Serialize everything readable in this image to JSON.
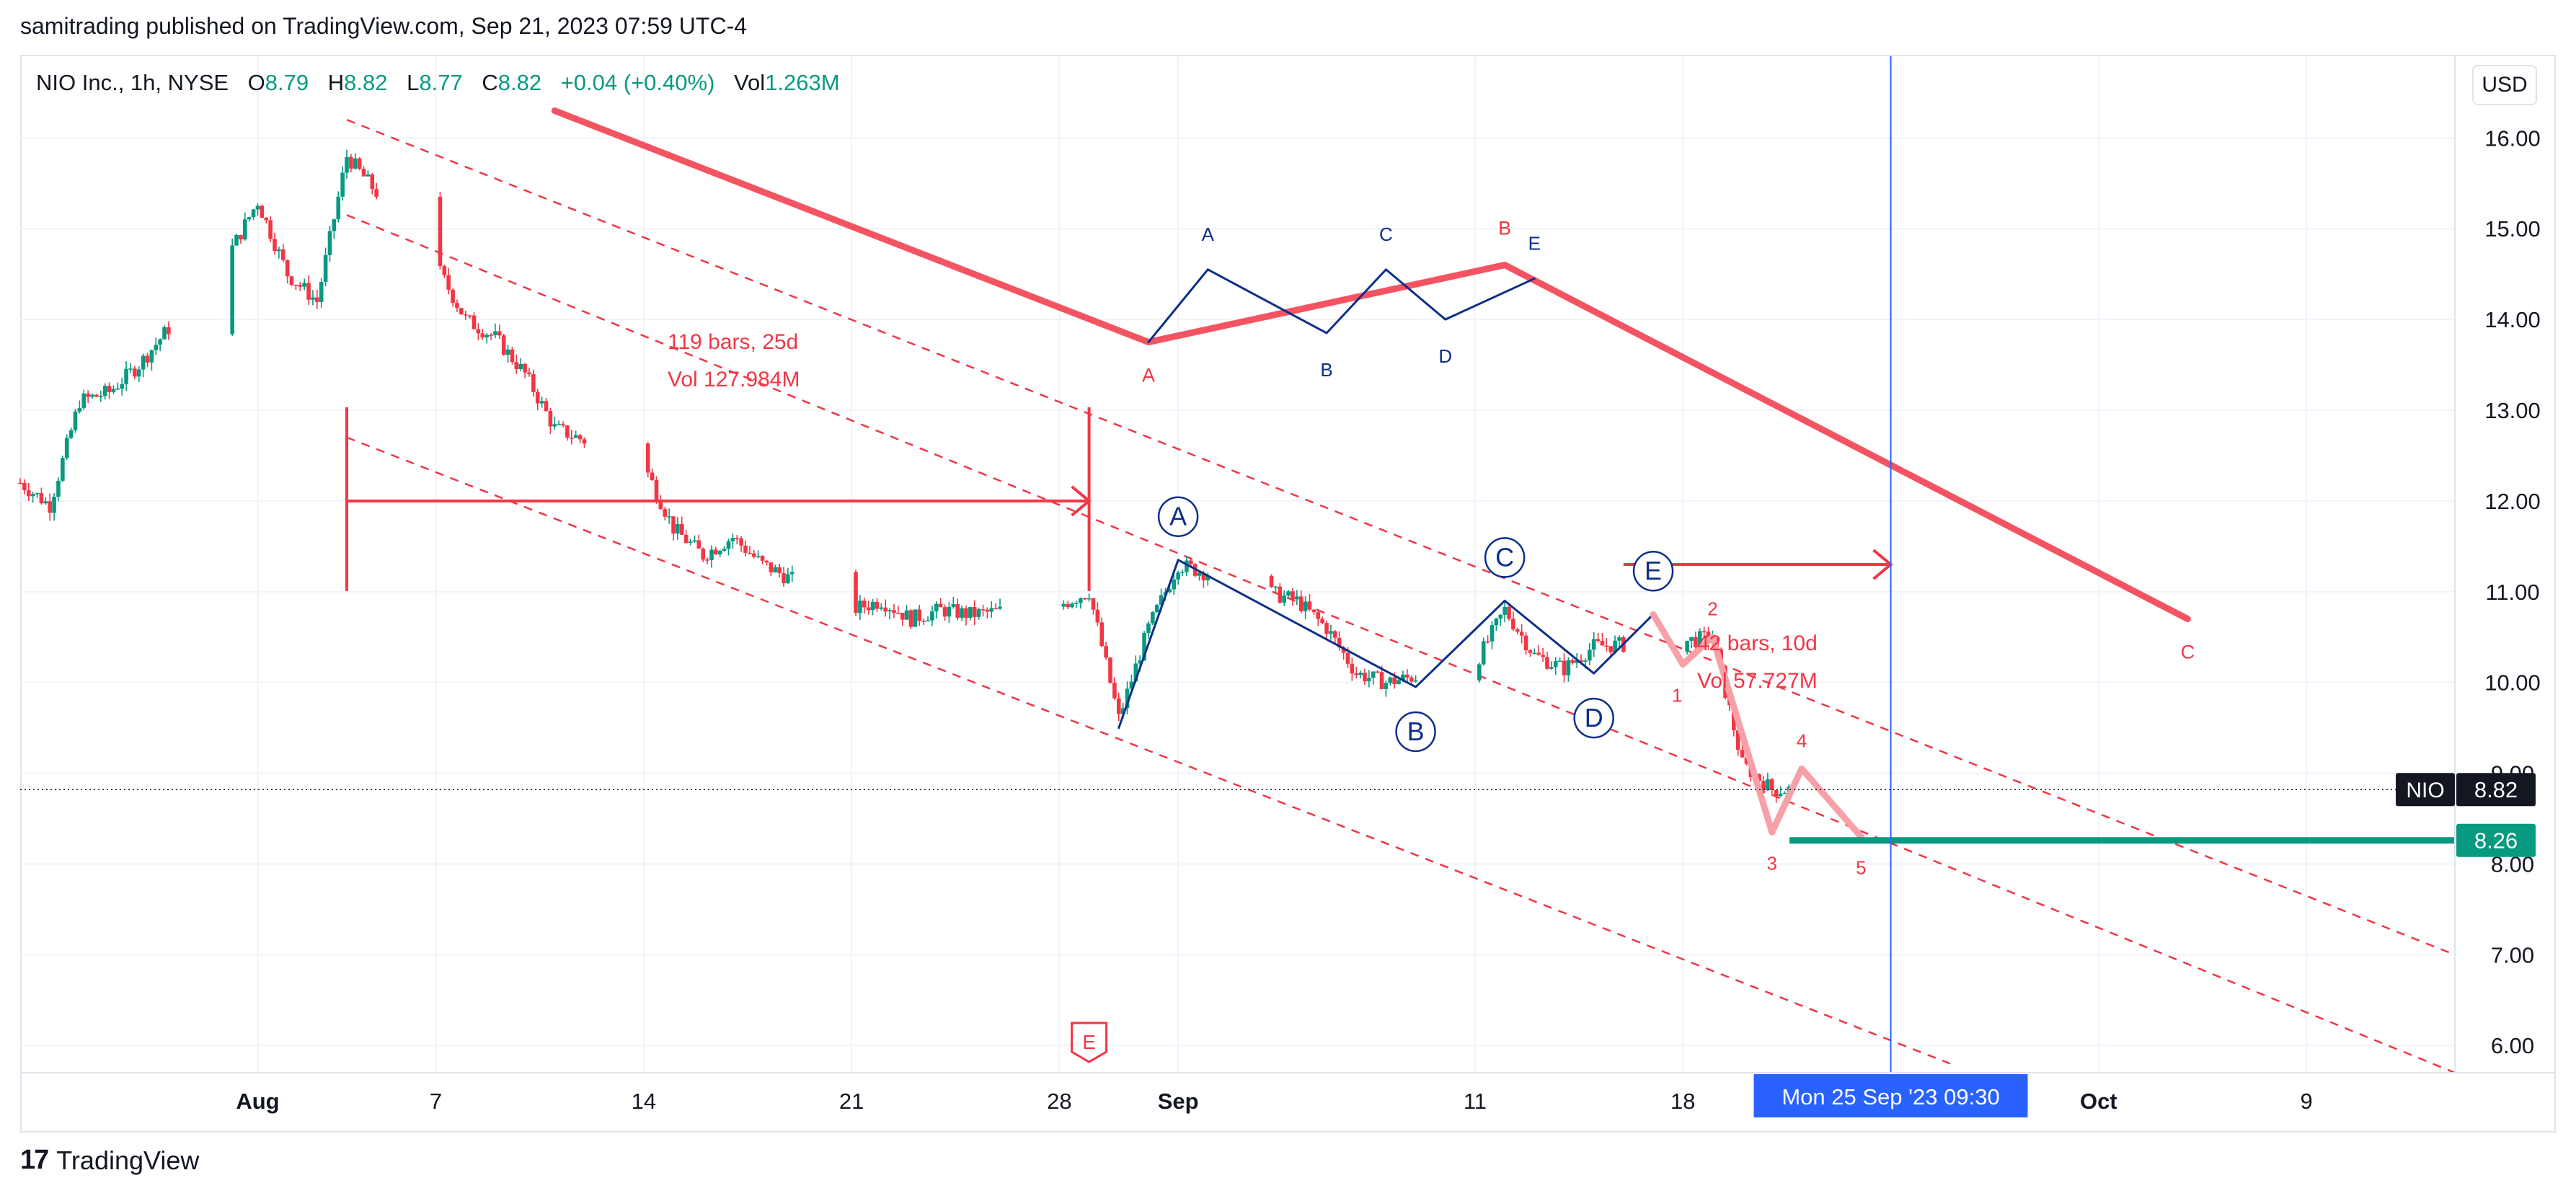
{
  "publisher_line": "samitrading published on TradingView.com, Sep 21, 2023 07:59 UTC-4",
  "legend": {
    "symbol_line": "NIO Inc., 1h, NYSE",
    "o_label": "O",
    "o_value": "8.79",
    "h_label": "H",
    "h_value": "8.82",
    "l_label": "L",
    "l_value": "8.77",
    "c_label": "C",
    "c_value": "8.82",
    "change": "+0.04 (+0.40%)",
    "vol_label": "Vol",
    "vol_value": "1.263M"
  },
  "currency": "USD",
  "footer": {
    "logo": "17",
    "brand": "TradingView"
  },
  "colors": {
    "up": "#089981",
    "down": "#f23645",
    "drawing_red": "#f23645",
    "wave_blue": "#0d2f8a",
    "pink": "#f7a0a8",
    "support_green": "#089981",
    "crosshair": "#2962ff"
  },
  "chart_data": {
    "type": "candlestick",
    "symbol": "NIO",
    "interval": "1h",
    "y_range": [
      5.7,
      16.9
    ],
    "y_ticks": [
      "16.00",
      "15.00",
      "14.00",
      "13.00",
      "12.00",
      "11.00",
      "10.00",
      "9.00",
      "8.00",
      "7.00",
      "6.00"
    ],
    "x_range": [
      "2023-07-24",
      "2023-10-14"
    ],
    "x_ticks": [
      {
        "date": "2023-08-01",
        "label": "Aug",
        "bold": true
      },
      {
        "date": "2023-08-07",
        "label": "7"
      },
      {
        "date": "2023-08-14",
        "label": "14"
      },
      {
        "date": "2023-08-21",
        "label": "21"
      },
      {
        "date": "2023-08-28",
        "label": "28"
      },
      {
        "date": "2023-09-01",
        "label": "Sep",
        "bold": true
      },
      {
        "date": "2023-09-11",
        "label": "11"
      },
      {
        "date": "2023-09-18",
        "label": "18"
      },
      {
        "date": "2023-10-02",
        "label": "Oct",
        "bold": true
      },
      {
        "date": "2023-10-09",
        "label": "9"
      }
    ],
    "price_path": [
      [
        "2023-07-24",
        12.2
      ],
      [
        "2023-07-25",
        11.95
      ],
      [
        "2023-07-26",
        13.1
      ],
      [
        "2023-07-27",
        13.2
      ],
      [
        "2023-07-28",
        13.5
      ],
      [
        "2023-07-31",
        14.7
      ],
      [
        "2023-08-01",
        15.3
      ],
      [
        "2023-08-02",
        14.5
      ],
      [
        "2023-08-03",
        14.2
      ],
      [
        "2023-08-04",
        15.8
      ],
      [
        "2023-08-07",
        14.6
      ],
      [
        "2023-08-08",
        14.0
      ],
      [
        "2023-08-09",
        13.8
      ],
      [
        "2023-08-10",
        13.4
      ],
      [
        "2023-08-11",
        12.8
      ],
      [
        "2023-08-14",
        12.4
      ],
      [
        "2023-08-15",
        11.7
      ],
      [
        "2023-08-16",
        11.4
      ],
      [
        "2023-08-17",
        11.6
      ],
      [
        "2023-08-18",
        11.3
      ],
      [
        "2023-08-21",
        10.8
      ],
      [
        "2023-08-22",
        10.9
      ],
      [
        "2023-08-23",
        10.7
      ],
      [
        "2023-08-24",
        10.8
      ],
      [
        "2023-08-25",
        10.75
      ],
      [
        "2023-08-28",
        10.85
      ],
      [
        "2023-08-29",
        11.0
      ],
      [
        "2023-08-30",
        9.6
      ],
      [
        "2023-08-31",
        10.6
      ],
      [
        "2023-09-01",
        11.3
      ],
      [
        "2023-09-05",
        10.9
      ],
      [
        "2023-09-06",
        10.6
      ],
      [
        "2023-09-07",
        10.1
      ],
      [
        "2023-09-08",
        10.0
      ],
      [
        "2023-09-11",
        10.2
      ],
      [
        "2023-09-12",
        10.8
      ],
      [
        "2023-09-13",
        10.3
      ],
      [
        "2023-09-14",
        10.15
      ],
      [
        "2023-09-15",
        10.4
      ],
      [
        "2023-09-18",
        10.45
      ],
      [
        "2023-09-19",
        10.5
      ],
      [
        "2023-09-20",
        9.1
      ],
      [
        "2023-09-21",
        8.82
      ]
    ],
    "last_price": {
      "symbol": "NIO",
      "value": "8.82"
    },
    "support_level": {
      "value": "8.26"
    },
    "crosshair": {
      "date": "2023-09-25",
      "label": "Mon 25 Sep '23   09:30"
    },
    "channel_lines": [
      {
        "from": [
          "2023-08-04",
          16.2
        ],
        "to": [
          "2023-10-14",
          7.0
        ]
      },
      {
        "from": [
          "2023-08-04",
          15.15
        ],
        "to": [
          "2023-10-14",
          5.7
        ]
      },
      {
        "from": [
          "2023-08-04",
          12.7
        ],
        "to": [
          "2023-09-27",
          5.8
        ]
      }
    ],
    "measure_left": {
      "from": "2023-08-04",
      "to": "2023-08-29",
      "price": 12.0,
      "bars_text": "119 bars, 25d",
      "vol_text": "Vol 127.984M"
    },
    "measure_right": {
      "from": "2023-09-16",
      "to": "2023-09-25",
      "price": 11.3,
      "bars_text": "42 bars, 10d",
      "vol_text": "Vol 57.727M"
    },
    "big_wave": [
      {
        "point": [
          "2023-08-11",
          16.3
        ],
        "label": ""
      },
      {
        "point": [
          "2023-08-31",
          13.75
        ],
        "label": "A"
      },
      {
        "point": [
          "2023-09-12",
          14.6
        ],
        "label": "B"
      },
      {
        "point": [
          "2023-10-05",
          10.7
        ],
        "label": "C"
      }
    ],
    "small_triangle": [
      {
        "point": [
          "2023-08-31",
          13.75
        ],
        "label": ""
      },
      {
        "point": [
          "2023-09-02",
          14.55
        ],
        "label": "A"
      },
      {
        "point": [
          "2023-09-06",
          13.85
        ],
        "label": "B"
      },
      {
        "point": [
          "2023-09-08",
          14.55
        ],
        "label": "C"
      },
      {
        "point": [
          "2023-09-10",
          14.0
        ],
        "label": "D"
      },
      {
        "point": [
          "2023-09-13",
          14.45
        ],
        "label": "E"
      }
    ],
    "circle_triangle": [
      {
        "point": [
          "2023-08-30",
          9.5
        ],
        "label": ""
      },
      {
        "point": [
          "2023-09-01",
          11.35
        ],
        "label": "A"
      },
      {
        "point": [
          "2023-09-09",
          9.95
        ],
        "label": "B"
      },
      {
        "point": [
          "2023-09-12",
          10.9
        ],
        "label": "C"
      },
      {
        "point": [
          "2023-09-15",
          10.1
        ],
        "label": "D"
      },
      {
        "point": [
          "2023-09-17",
          10.75
        ],
        "label": "E"
      }
    ],
    "impulse_wave": [
      {
        "point": [
          "2023-09-17",
          10.75
        ],
        "label": ""
      },
      {
        "point": [
          "2023-09-18",
          10.2
        ],
        "label": "1"
      },
      {
        "point": [
          "2023-09-19",
          10.5
        ],
        "label": "2"
      },
      {
        "point": [
          "2023-09-21",
          8.35
        ],
        "label": "3"
      },
      {
        "point": [
          "2023-09-22",
          9.05
        ],
        "label": "4"
      },
      {
        "point": [
          "2023-09-24",
          8.3
        ],
        "label": "5"
      }
    ],
    "earnings_marker": {
      "date": "2023-08-29",
      "label": "E"
    }
  }
}
